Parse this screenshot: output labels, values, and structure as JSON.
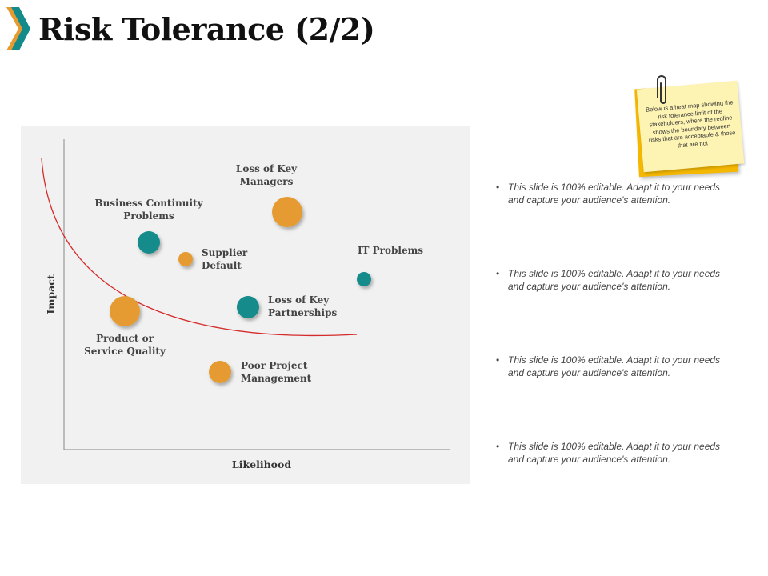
{
  "title": "Risk Tolerance (2/2)",
  "colors": {
    "accent_teal": "#138b8b",
    "accent_orange": "#e59b32",
    "accent_dark_teal": "#17606a",
    "red_line": "#d42a2a"
  },
  "icons": {
    "title_marker": "chevron-icon",
    "note_clip": "paperclip-icon"
  },
  "chart_data": {
    "type": "scatter",
    "xlabel": "Likelihood",
    "ylabel": "Impact",
    "grid": false,
    "points": [
      {
        "label": "Loss of Key Managers",
        "color": "orange",
        "size": "large"
      },
      {
        "label": "Business Continuity Problems",
        "color": "teal",
        "size": "medium"
      },
      {
        "label": "Supplier Default",
        "color": "orange",
        "size": "small"
      },
      {
        "label": "IT Problems",
        "color": "teal",
        "size": "small"
      },
      {
        "label": "Loss of Key Partnerships",
        "color": "teal",
        "size": "medium"
      },
      {
        "label": "Product or Service Quality",
        "color": "orange",
        "size": "large"
      },
      {
        "label": "Poor Project Management",
        "color": "orange",
        "size": "medium"
      }
    ],
    "tolerance_line": {
      "color": "#d42a2a"
    }
  },
  "note": {
    "text": "Below is a heat map showing the risk tolerance limit of the stakeholders, where the redline shows the boundary between risks that are acceptable & those that are not"
  },
  "bullets": [
    "This slide is 100% editable. Adapt it to your needs and capture your audience's attention.",
    "This slide is 100% editable. Adapt it to your needs and capture your audience's attention.",
    "This slide is 100% editable. Adapt it to your needs and capture your audience's attention.",
    "This slide is 100% editable. Adapt it to your needs and capture your audience's attention."
  ]
}
